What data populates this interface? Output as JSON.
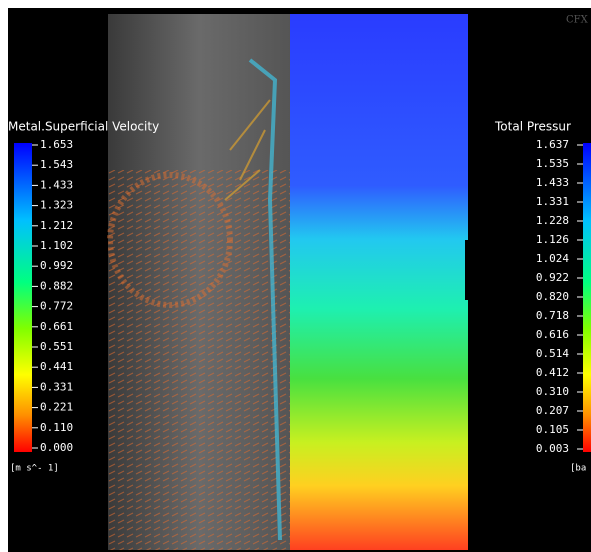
{
  "watermark": "CFX",
  "left_legend": {
    "title": "Metal.Superficial Velocity",
    "ticks": [
      "1.653",
      "1.543",
      "1.433",
      "1.323",
      "1.212",
      "1.102",
      "0.992",
      "0.882",
      "0.772",
      "0.661",
      "0.551",
      "0.441",
      "0.331",
      "0.221",
      "0.110",
      "0.000"
    ],
    "units": "[m s^- 1]"
  },
  "right_legend": {
    "title": "Total Pressur",
    "ticks": [
      "1.637",
      "1.535",
      "1.433",
      "1.331",
      "1.228",
      "1.126",
      "1.024",
      "0.922",
      "0.820",
      "0.718",
      "0.616",
      "0.514",
      "0.412",
      "0.310",
      "0.207",
      "0.105",
      "0.003"
    ],
    "units": "[ba"
  }
}
